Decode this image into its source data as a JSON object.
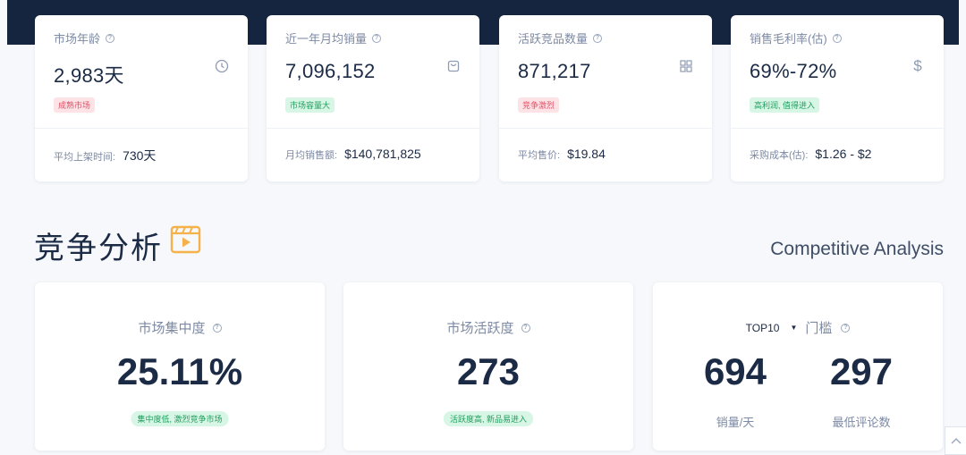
{
  "stats": [
    {
      "label": "市场年龄",
      "value": "2,983天",
      "icon": "clock-icon",
      "badge": "成熟市场",
      "badge_color": "red",
      "foot_label": "平均上架时间:",
      "foot_value": "730天"
    },
    {
      "label": "近一年月均销量",
      "value": "7,096,152",
      "icon": "shopping-bag-icon",
      "badge": "市场容量大",
      "badge_color": "green",
      "foot_label": "月均销售额:",
      "foot_value": "$140,781,825"
    },
    {
      "label": "活跃竞品数量",
      "value": "871,217",
      "icon": "grid-icon",
      "badge": "竞争激烈",
      "badge_color": "red",
      "foot_label": "平均售价:",
      "foot_value": "$19.84"
    },
    {
      "label": "销售毛利率(估)",
      "value": "69%-72%",
      "icon": "dollar-icon",
      "badge": "高利润, 值得进入",
      "badge_color": "green",
      "foot_label": "采购成本(估):",
      "foot_value": "$1.26 - $2"
    }
  ],
  "section": {
    "title": "竞争分析",
    "subtitle": "Competitive Analysis",
    "icon": "video-icon"
  },
  "analysis": {
    "concentration": {
      "label": "市场集中度",
      "value": "25.11%",
      "badge": "集中度低, 激烈竞争市场"
    },
    "activity": {
      "label": "市场活跃度",
      "value": "273",
      "badge": "活跃度高, 新品易进入"
    },
    "threshold": {
      "select": "TOP10",
      "label": "门槛",
      "sales_value": "694",
      "sales_label": "销量/天",
      "reviews_value": "297",
      "reviews_label": "最低评论数"
    }
  },
  "colors": {
    "header": "#16253f",
    "badge_red_bg": "#fde3e6",
    "badge_green_bg": "#d8f6e6",
    "accent_orange": "#f6b24a"
  }
}
